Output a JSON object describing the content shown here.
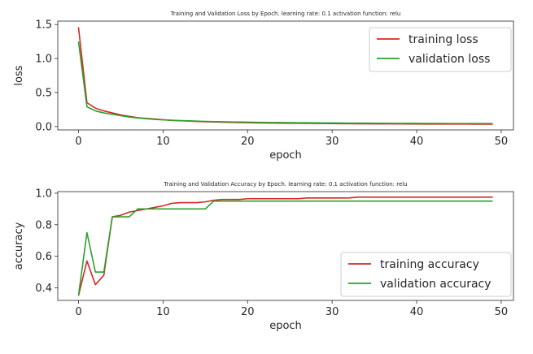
{
  "chart_data": [
    {
      "type": "line",
      "title": "Training and Validation Loss by Epoch. learning rate: 0.1 activation function: relu",
      "xlabel": "epoch",
      "ylabel": "loss",
      "xlim": [
        -2.45,
        51.45
      ],
      "ylim": [
        -0.05,
        1.55
      ],
      "xticks": [
        "0",
        "10",
        "20",
        "30",
        "40",
        "50"
      ],
      "xtick_values": [
        0,
        10,
        20,
        30,
        40,
        50
      ],
      "yticks": [
        "0.0",
        "0.5",
        "1.0",
        "1.5"
      ],
      "ytick_values": [
        0.0,
        0.5,
        1.0,
        1.5
      ],
      "legend": "upper right",
      "grid": false,
      "x": [
        0,
        1,
        2,
        3,
        4,
        5,
        6,
        7,
        8,
        9,
        10,
        11,
        12,
        13,
        14,
        15,
        16,
        17,
        18,
        19,
        20,
        21,
        22,
        23,
        24,
        25,
        26,
        27,
        28,
        29,
        30,
        31,
        32,
        33,
        34,
        35,
        36,
        37,
        38,
        39,
        40,
        41,
        42,
        43,
        44,
        45,
        46,
        47,
        48,
        49
      ],
      "series": [
        {
          "name": "training loss",
          "color": "#d62728",
          "values": [
            1.46,
            0.35,
            0.27,
            0.23,
            0.2,
            0.17,
            0.15,
            0.13,
            0.12,
            0.11,
            0.1,
            0.09,
            0.085,
            0.08,
            0.075,
            0.07,
            0.067,
            0.064,
            0.061,
            0.058,
            0.056,
            0.054,
            0.052,
            0.05,
            0.049,
            0.048,
            0.047,
            0.046,
            0.045,
            0.044,
            0.043,
            0.042,
            0.041,
            0.04,
            0.04,
            0.039,
            0.039,
            0.038,
            0.038,
            0.037,
            0.037,
            0.036,
            0.036,
            0.036,
            0.035,
            0.035,
            0.035,
            0.034,
            0.034,
            0.034
          ]
        },
        {
          "name": "validation loss",
          "color": "#2ca02c",
          "values": [
            1.25,
            0.29,
            0.23,
            0.2,
            0.18,
            0.16,
            0.14,
            0.125,
            0.115,
            0.105,
            0.098,
            0.092,
            0.087,
            0.083,
            0.079,
            0.075,
            0.072,
            0.07,
            0.068,
            0.066,
            0.064,
            0.062,
            0.06,
            0.059,
            0.058,
            0.057,
            0.056,
            0.055,
            0.054,
            0.053,
            0.052,
            0.051,
            0.05,
            0.05,
            0.049,
            0.048,
            0.048,
            0.047,
            0.047,
            0.046,
            0.046,
            0.045,
            0.045,
            0.045,
            0.044,
            0.044,
            0.044,
            0.043,
            0.043,
            0.043
          ]
        }
      ]
    },
    {
      "type": "line",
      "title": "Training and Validation Accuracy by Epoch. learning rate: 0.1 activation function: relu",
      "xlabel": "epoch",
      "ylabel": "accuracy",
      "xlim": [
        -2.45,
        51.45
      ],
      "ylim": [
        0.32,
        1.01
      ],
      "xticks": [
        "0",
        "10",
        "20",
        "30",
        "40",
        "50"
      ],
      "xtick_values": [
        0,
        10,
        20,
        30,
        40,
        50
      ],
      "yticks": [
        "0.4",
        "0.6",
        "0.8",
        "1.0"
      ],
      "ytick_values": [
        0.4,
        0.6,
        0.8,
        1.0
      ],
      "legend": "lower right",
      "grid": false,
      "x": [
        0,
        1,
        2,
        3,
        4,
        5,
        6,
        7,
        8,
        9,
        10,
        11,
        12,
        13,
        14,
        15,
        16,
        17,
        18,
        19,
        20,
        21,
        22,
        23,
        24,
        25,
        26,
        27,
        28,
        29,
        30,
        31,
        32,
        33,
        34,
        35,
        36,
        37,
        38,
        39,
        40,
        41,
        42,
        43,
        44,
        45,
        46,
        47,
        48,
        49
      ],
      "series": [
        {
          "name": "training accuracy",
          "color": "#d62728",
          "values": [
            0.35,
            0.57,
            0.42,
            0.48,
            0.85,
            0.86,
            0.88,
            0.89,
            0.9,
            0.91,
            0.92,
            0.935,
            0.94,
            0.94,
            0.94,
            0.945,
            0.955,
            0.96,
            0.96,
            0.96,
            0.965,
            0.965,
            0.965,
            0.965,
            0.965,
            0.965,
            0.965,
            0.97,
            0.97,
            0.97,
            0.97,
            0.97,
            0.97,
            0.975,
            0.975,
            0.975,
            0.975,
            0.975,
            0.975,
            0.975,
            0.975,
            0.975,
            0.975,
            0.975,
            0.975,
            0.975,
            0.975,
            0.975,
            0.975,
            0.975
          ]
        },
        {
          "name": "validation accuracy",
          "color": "#2ca02c",
          "values": [
            0.35,
            0.75,
            0.5,
            0.5,
            0.85,
            0.85,
            0.85,
            0.9,
            0.9,
            0.9,
            0.9,
            0.9,
            0.9,
            0.9,
            0.9,
            0.9,
            0.95,
            0.95,
            0.95,
            0.95,
            0.95,
            0.95,
            0.95,
            0.95,
            0.95,
            0.95,
            0.95,
            0.95,
            0.95,
            0.95,
            0.95,
            0.95,
            0.95,
            0.95,
            0.95,
            0.95,
            0.95,
            0.95,
            0.95,
            0.95,
            0.95,
            0.95,
            0.95,
            0.95,
            0.95,
            0.95,
            0.95,
            0.95,
            0.95,
            0.95
          ]
        }
      ]
    }
  ]
}
